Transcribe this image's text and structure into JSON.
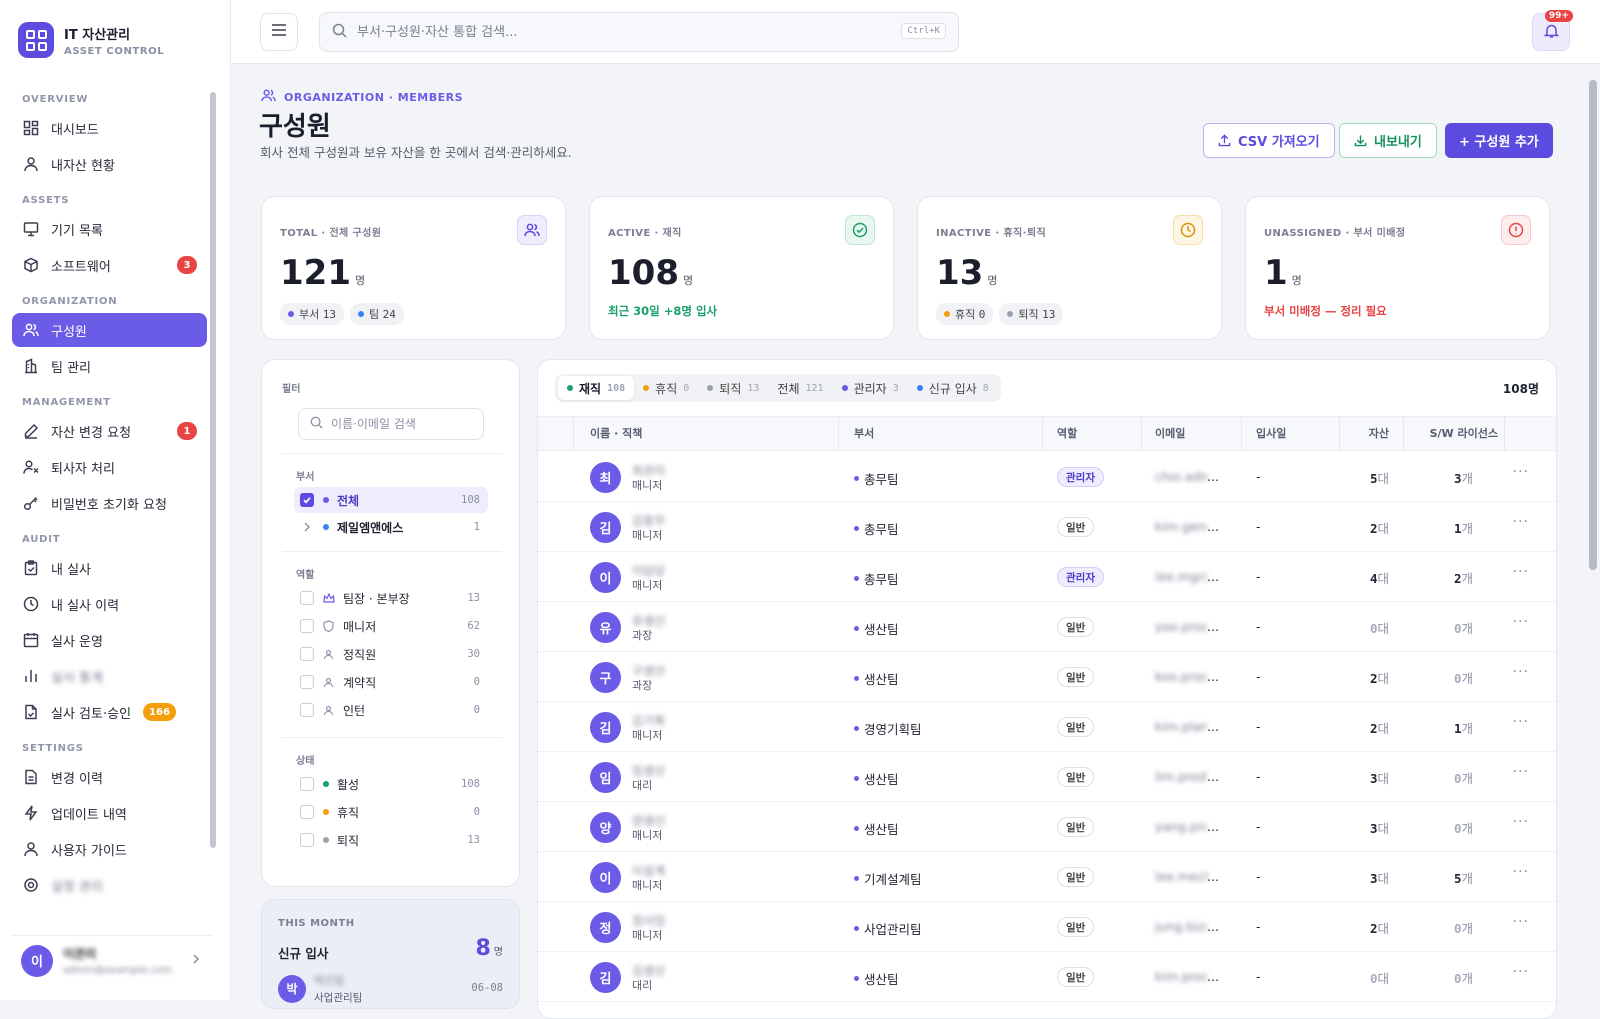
{
  "brand": {
    "title": "IT 자산관리",
    "subtitle": "ASSET CONTROL"
  },
  "nav": {
    "overview": "OVERVIEW",
    "dashboard": "대시보드",
    "my_assets": "내자산 현황",
    "assets": "ASSETS",
    "devices": "기기 목록",
    "software": "소프트웨어",
    "software_badge": "3",
    "organization": "ORGANIZATION",
    "members": "구성원",
    "teams": "팀 관리",
    "management": "MANAGEMENT",
    "change_request": "자산 변경 요청",
    "change_request_badge": "1",
    "leaver": "퇴사자 처리",
    "password_reset": "비밀번호 초기화 요청",
    "audit": "AUDIT",
    "my_audit": "내 실사",
    "my_audit_history": "내 실사 이력",
    "audit_ops": "실사 운영",
    "audit_stats": "실사 통계",
    "audit_review": "실사 검토·승인",
    "audit_review_badge": "166",
    "settings": "SETTINGS",
    "change_log": "변경 이력",
    "updates": "업데이트 내역",
    "guide": "사용자 가이드",
    "cut_item": "설정 관리"
  },
  "user": {
    "initial": "이",
    "name": "이관리",
    "email": "admin@example.com"
  },
  "topbar": {
    "search_placeholder": "부서·구성원·자산 통합 검색...",
    "shortcut": "Ctrl+K",
    "notif_count": "99+"
  },
  "header": {
    "crumb": "ORGANIZATION · MEMBERS",
    "title": "구성원",
    "subtitle": "회사 전체 구성원과 보유 자산을 한 곳에서 검색·관리하세요.",
    "csv": "CSV 가져오기",
    "export": "내보내기",
    "add": "+ 구성원 추가"
  },
  "stats": {
    "total": {
      "label": "TOTAL · 전체 구성원",
      "value": "121",
      "unit": "명",
      "dept": "부서",
      "dept_n": "13",
      "team": "팀",
      "team_n": "24"
    },
    "active": {
      "label": "ACTIVE · 재직",
      "value": "108",
      "unit": "명",
      "note": "최근 30일 +8명 입사"
    },
    "inactive": {
      "label": "INACTIVE · 휴직·퇴직",
      "value": "13",
      "unit": "명",
      "leave": "휴직",
      "leave_n": "0",
      "retired": "퇴직",
      "retired_n": "13"
    },
    "unassigned": {
      "label": "UNASSIGNED · 부서 미배정",
      "value": "1",
      "unit": "명",
      "note": "부서 미배정 — 정리 필요"
    }
  },
  "filter": {
    "title": "필터",
    "search_placeholder": "이름·이메일 검색",
    "dept_label": "부서",
    "dept_all": "전체",
    "dept_all_n": "108",
    "dept_1": "제일엠앤에스",
    "dept_1_n": "1",
    "role_label": "역할",
    "roles": [
      {
        "label": "팀장 · 본부장",
        "n": "13"
      },
      {
        "label": "매니저",
        "n": "62"
      },
      {
        "label": "정직원",
        "n": "30"
      },
      {
        "label": "계약직",
        "n": "0"
      },
      {
        "label": "인턴",
        "n": "0"
      }
    ],
    "status_label": "상태",
    "statuses": [
      {
        "label": "활성",
        "n": "108",
        "color": "#1aa06a"
      },
      {
        "label": "휴직",
        "n": "0",
        "color": "#f59e0b"
      },
      {
        "label": "퇴직",
        "n": "13",
        "color": "#9aa0b2"
      }
    ]
  },
  "month": {
    "label": "THIS MONTH",
    "title": "신규 입사",
    "count": "8",
    "unit": "명",
    "initial": "박",
    "name": "박신입",
    "dept": "사업관리팀",
    "date": "06-08"
  },
  "table": {
    "tabs": [
      {
        "label": "재직",
        "n": "108",
        "color": "#1aa06a"
      },
      {
        "label": "휴직",
        "n": "0",
        "color": "#f59e0b"
      },
      {
        "label": "퇴직",
        "n": "13",
        "color": "#9aa0b2"
      },
      {
        "label": "전체",
        "n": "121",
        "color": ""
      },
      {
        "label": "관리자",
        "n": "3",
        "color": "#6b5ce7"
      },
      {
        "label": "신규 입사",
        "n": "8",
        "color": "#3b82f6"
      }
    ],
    "total": "108명",
    "headers": {
      "name": "이름 · 직책",
      "dept": "부서",
      "role": "역할",
      "email": "이메일",
      "joined": "입사일",
      "assets": "자산",
      "sw": "S/W 라이선스"
    },
    "asset_unit": "대",
    "sw_unit": "개",
    "rows": [
      {
        "initial": "최",
        "name": "최관리",
        "title": "매니저",
        "dept": "총무팀",
        "role": "관리자",
        "admin": true,
        "email": "choi.admin@corp...",
        "joined": "-",
        "assets": "5",
        "sw": "3"
      },
      {
        "initial": "김",
        "name": "김총무",
        "title": "매니저",
        "dept": "총무팀",
        "role": "일반",
        "admin": false,
        "email": "kim.gen@corp...",
        "joined": "-",
        "assets": "2",
        "sw": "1"
      },
      {
        "initial": "이",
        "name": "이담당",
        "title": "매니저",
        "dept": "총무팀",
        "role": "관리자",
        "admin": true,
        "email": "lee.mgr@corp...",
        "joined": "-",
        "assets": "4",
        "sw": "2"
      },
      {
        "initial": "유",
        "name": "유생산",
        "title": "과장",
        "dept": "생산팀",
        "role": "일반",
        "admin": false,
        "email": "yoo.prod@corp...",
        "joined": "-",
        "assets": "0",
        "sw": "0"
      },
      {
        "initial": "구",
        "name": "구생산",
        "title": "과장",
        "dept": "생산팀",
        "role": "일반",
        "admin": false,
        "email": "koo.prod@corp...",
        "joined": "-",
        "assets": "2",
        "sw": "0"
      },
      {
        "initial": "김",
        "name": "김기획",
        "title": "매니저",
        "dept": "경영기획팀",
        "role": "일반",
        "admin": false,
        "email": "kim.plan@corp...",
        "joined": "-",
        "assets": "2",
        "sw": "1"
      },
      {
        "initial": "임",
        "name": "임생산",
        "title": "대리",
        "dept": "생산팀",
        "role": "일반",
        "admin": false,
        "email": "lim.prod@corp...",
        "joined": "-",
        "assets": "3",
        "sw": "0"
      },
      {
        "initial": "양",
        "name": "양생산",
        "title": "매니저",
        "dept": "생산팀",
        "role": "일반",
        "admin": false,
        "email": "yang.prod@corp...",
        "joined": "-",
        "assets": "3",
        "sw": "0"
      },
      {
        "initial": "이",
        "name": "이설계",
        "title": "매니저",
        "dept": "기계설계팀",
        "role": "일반",
        "admin": false,
        "email": "lee.mech@corp...",
        "joined": "-",
        "assets": "3",
        "sw": "5"
      },
      {
        "initial": "정",
        "name": "정사업",
        "title": "매니저",
        "dept": "사업관리팀",
        "role": "일반",
        "admin": false,
        "email": "jung.biz@corp...",
        "joined": "-",
        "assets": "2",
        "sw": "0"
      },
      {
        "initial": "김",
        "name": "김생산",
        "title": "대리",
        "dept": "생산팀",
        "role": "일반",
        "admin": false,
        "email": "kim.prod@corp...",
        "joined": "-",
        "assets": "0",
        "sw": "0"
      }
    ]
  },
  "colors": {
    "accent": "#5b4bde",
    "active_nav": "#6b5ce7",
    "success": "#1aa06a",
    "danger": "#e94444",
    "warning": "#f59e0b"
  }
}
